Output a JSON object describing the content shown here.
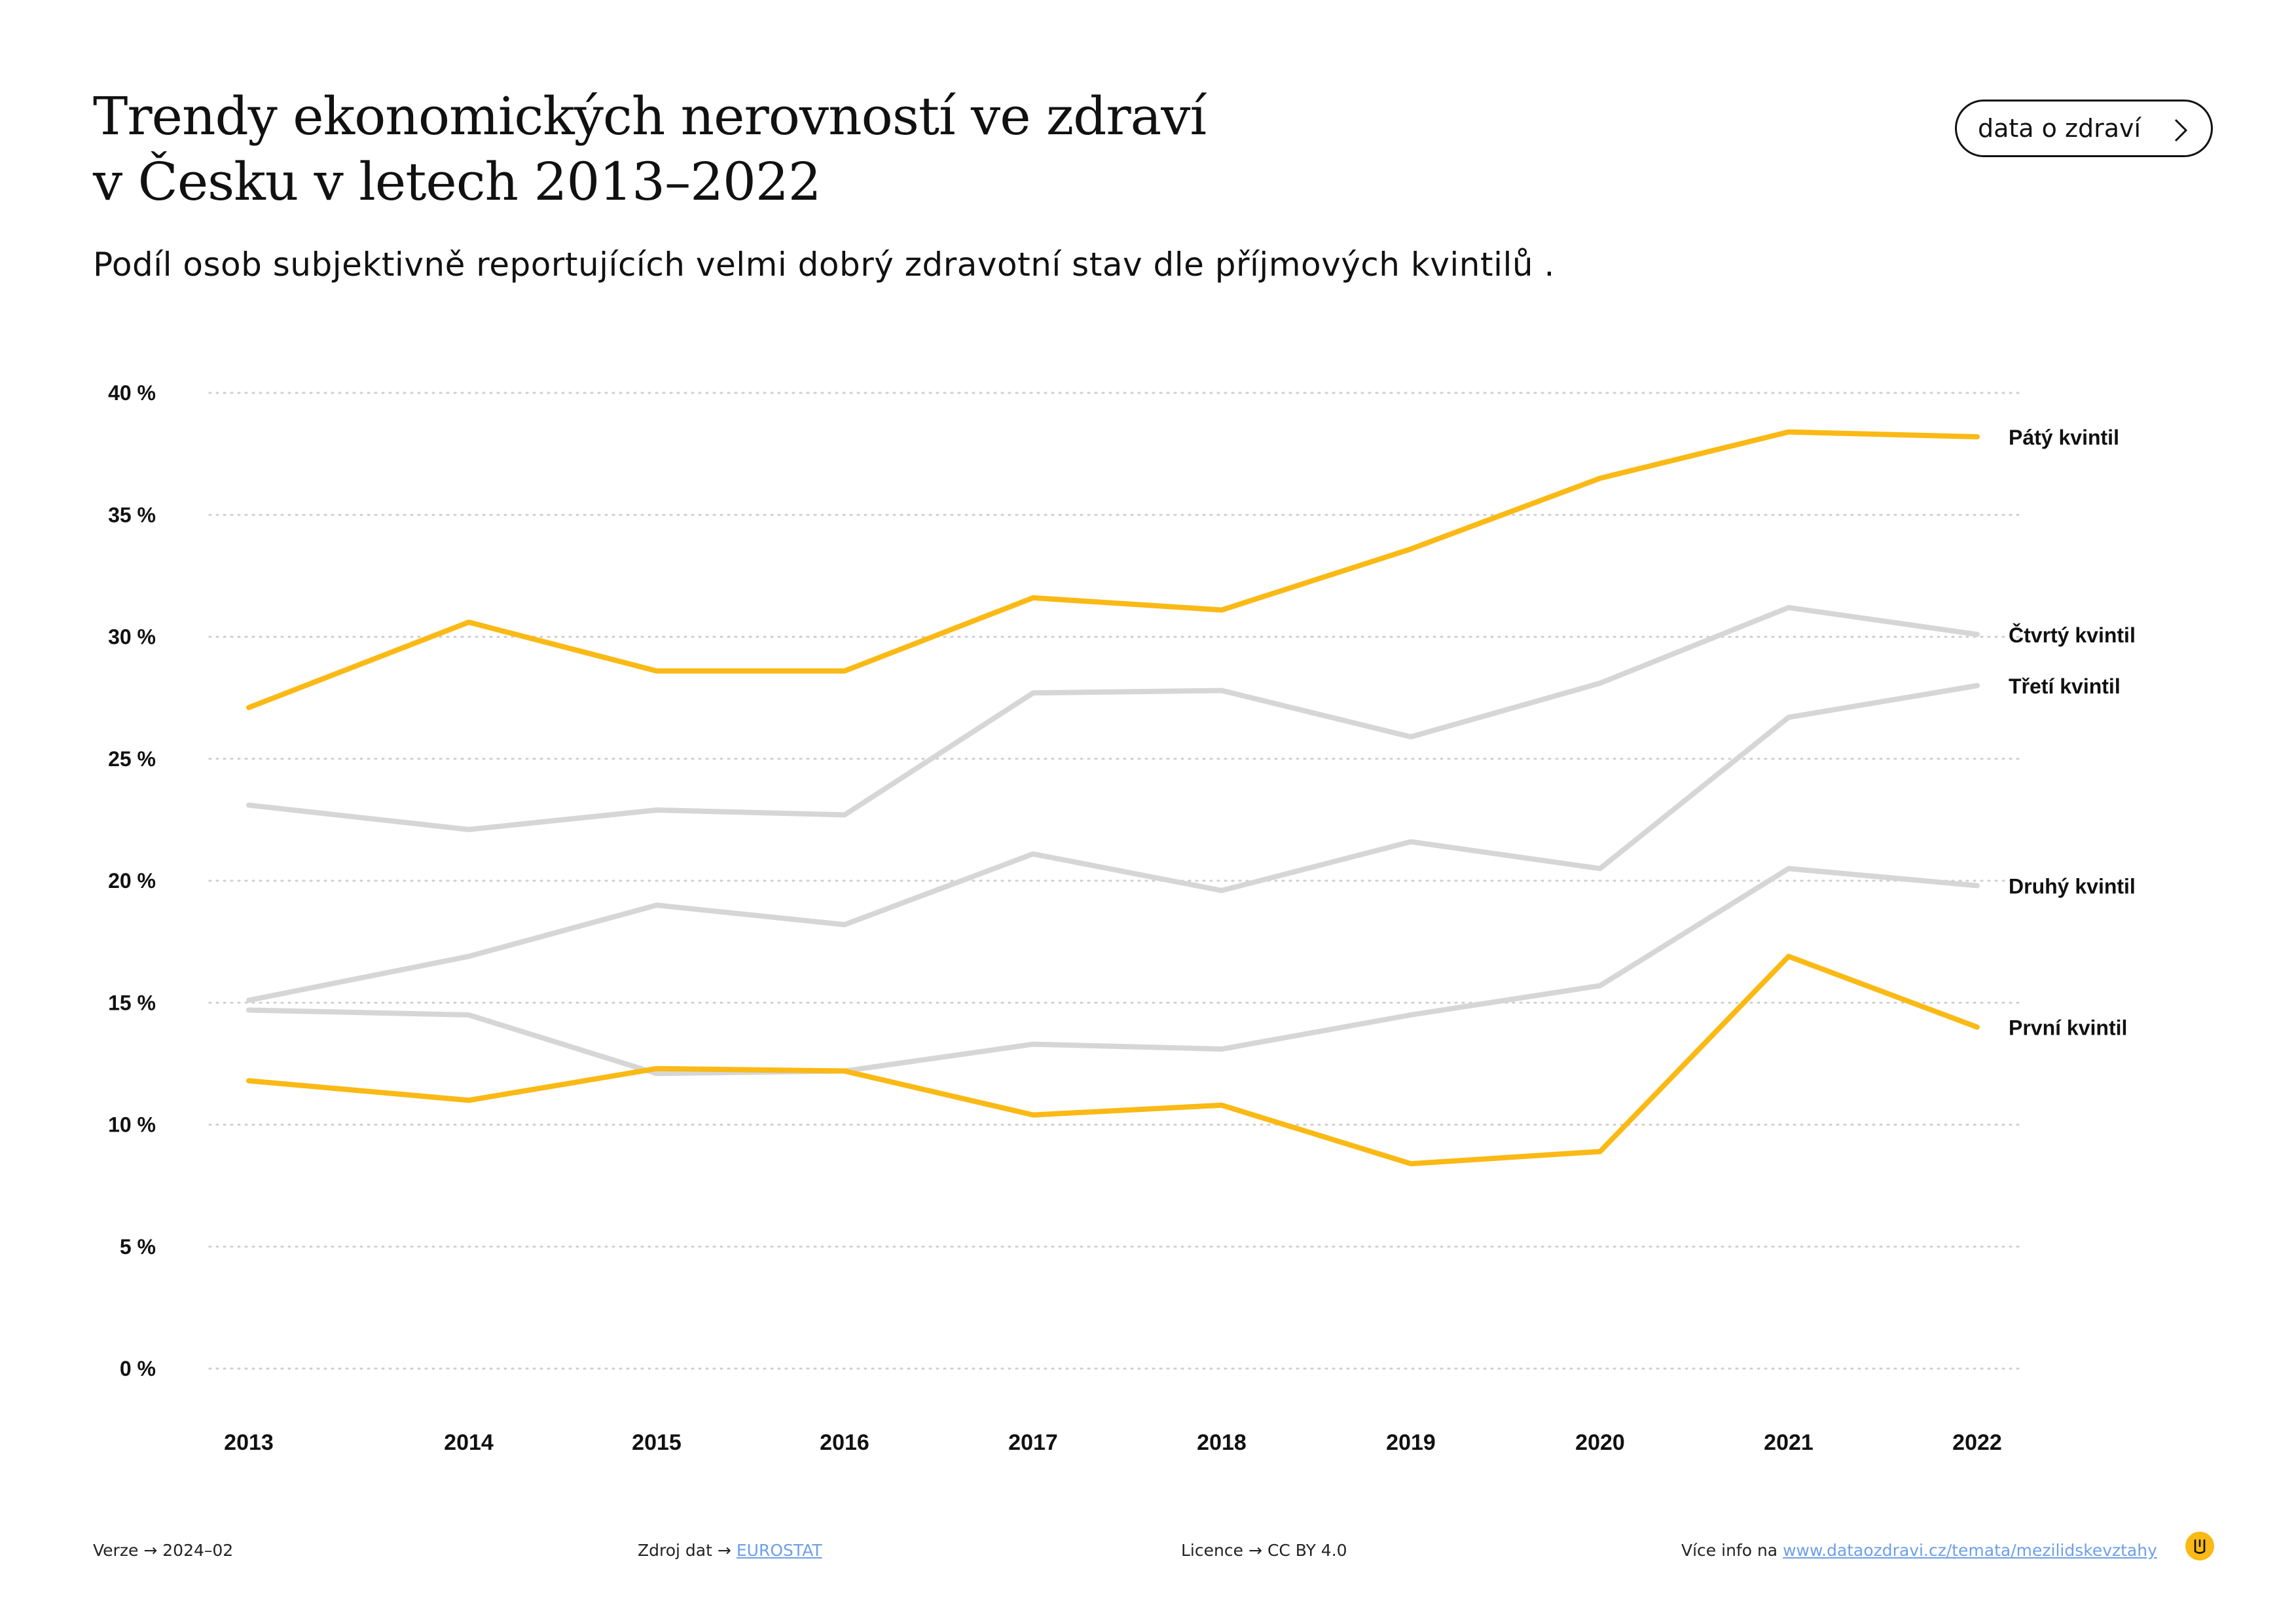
{
  "title": {
    "line1": "Trendy ekonomických nerovností ve zdraví",
    "line2": "v Česku v letech 2013–2022"
  },
  "subtitle": "Podíl osob subjektivně reportujících velmi dobrý zdravotní stav dle příjmových kvintilů .",
  "nav_button": {
    "label": "data o zdraví",
    "icon": "chevron-right-icon"
  },
  "colors": {
    "highlight": "#fab914",
    "muted": "#d6d6d6",
    "grid": "#cfcfcf",
    "link": "#6d9fe8"
  },
  "chart_data": {
    "type": "line",
    "title": "",
    "xlabel": "",
    "ylabel": "",
    "x": [
      "2013",
      "2014",
      "2015",
      "2016",
      "2017",
      "2018",
      "2019",
      "2020",
      "2021",
      "2022"
    ],
    "ylim": [
      0,
      40
    ],
    "yticks": [
      0,
      5,
      10,
      15,
      20,
      25,
      30,
      35,
      40
    ],
    "ytick_labels": [
      "0 %",
      "5 %",
      "10 %",
      "15 %",
      "20 %",
      "25 %",
      "30 %",
      "35 %",
      "40 %"
    ],
    "grid": "horizontal dotted",
    "legend": "direct labels at line ends (right)",
    "series": [
      {
        "name": "Pátý kvintil",
        "highlight": true,
        "values": [
          27.1,
          30.6,
          28.6,
          28.6,
          31.6,
          31.1,
          33.6,
          36.5,
          38.4,
          38.2
        ]
      },
      {
        "name": "Čtvrtý kvintil",
        "highlight": false,
        "values": [
          23.1,
          22.1,
          22.9,
          22.7,
          27.7,
          27.8,
          25.9,
          28.1,
          31.2,
          30.1
        ]
      },
      {
        "name": "Třetí kvintil",
        "highlight": false,
        "values": [
          15.1,
          16.9,
          19.0,
          18.2,
          21.1,
          19.6,
          21.6,
          20.5,
          26.7,
          28.0
        ]
      },
      {
        "name": "Druhý kvintil",
        "highlight": false,
        "values": [
          14.7,
          14.5,
          12.1,
          12.2,
          13.3,
          13.1,
          14.5,
          15.7,
          20.5,
          19.8
        ]
      },
      {
        "name": "První kvintil",
        "highlight": true,
        "values": [
          11.8,
          11.0,
          12.3,
          12.2,
          10.4,
          10.8,
          8.4,
          8.9,
          16.9,
          14.0
        ]
      }
    ]
  },
  "footer": {
    "version_label": "Verze",
    "version_value": "2024–02",
    "source_label": "Zdroj dat",
    "source_value": "EUROSTAT",
    "license_label": "Licence",
    "license_value": "CC BY 4.0",
    "more_label": "Více info na",
    "more_link": "www.dataozdravi.cz/temata/mezilidskevztahy",
    "arrow": "→"
  }
}
